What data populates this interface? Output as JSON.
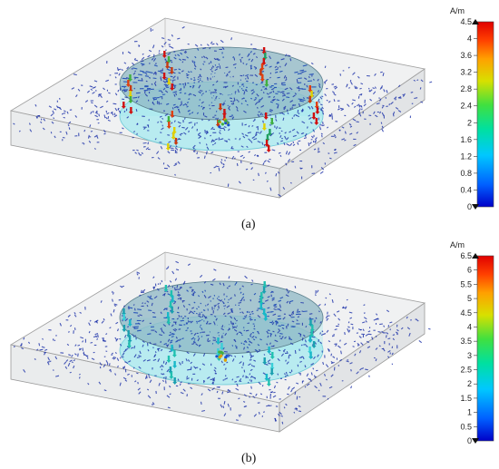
{
  "panels": [
    {
      "caption": "(a)",
      "colorbar": {
        "unit": "A/m",
        "ticks": [
          "4.5",
          "4",
          "3.6",
          "3.2",
          "2.8",
          "2.4",
          "2",
          "1.6",
          "1.2",
          "0.8",
          "0.4",
          "0"
        ]
      },
      "hot_arrows": true
    },
    {
      "caption": "(b)",
      "colorbar": {
        "unit": "A/m",
        "ticks": [
          "6.5",
          "6",
          "5.5",
          "5",
          "4.5",
          "4",
          "3.5",
          "3",
          "2.5",
          "2",
          "1.5",
          "1",
          "0.5",
          "0"
        ]
      },
      "hot_arrows": false
    }
  ],
  "colors": {
    "arrow_blue": "#1a2fa8",
    "box_fill": "#d9dcdf",
    "disk_fill": "#8fb7c4",
    "disk_bottom": "#9fe8ef"
  }
}
